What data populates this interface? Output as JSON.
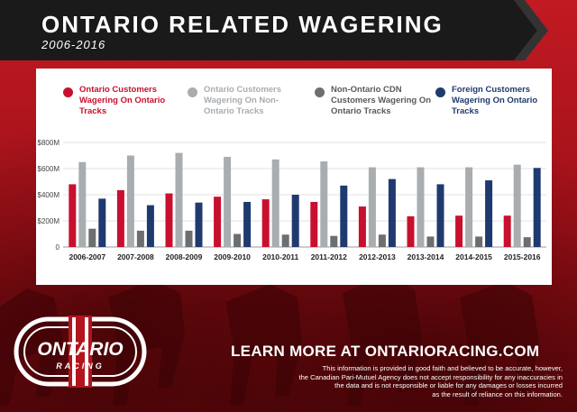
{
  "header": {
    "title": "ONTARIO RELATED WAGERING",
    "subtitle": "2006-2016"
  },
  "legend": [
    {
      "label": "Ontario Customers Wagering On Ontario Tracks",
      "color": "#c8102e"
    },
    {
      "label": "Ontario Customers Wagering On Non-Ontario Tracks",
      "color": "#a9adb0"
    },
    {
      "label": "Non-Ontario CDN Customers Wagering On Ontario Tracks",
      "color": "#6d6e70"
    },
    {
      "label": "Foreign Customers Wagering On Ontario Tracks",
      "color": "#1f3a6e"
    }
  ],
  "chart_data": {
    "type": "bar",
    "title": "",
    "xlabel": "",
    "ylabel": "",
    "ylim": [
      0,
      800
    ],
    "y_ticks": [
      "0",
      "$200M",
      "$400M",
      "$600M",
      "$800M"
    ],
    "y_tick_values": [
      0,
      200,
      400,
      600,
      800
    ],
    "grid": true,
    "categories": [
      "2006-2007",
      "2007-2008",
      "2008-2009",
      "2009-2010",
      "2010-2011",
      "2011-2012",
      "2012-2013",
      "2013-2014",
      "2014-2015",
      "2015-2016"
    ],
    "series": [
      {
        "name": "Ontario Customers Wagering On Ontario Tracks",
        "color": "#c8102e",
        "values": [
          480,
          435,
          410,
          385,
          365,
          345,
          310,
          235,
          240,
          240
        ]
      },
      {
        "name": "Ontario Customers Wagering On Non-Ontario Tracks",
        "color": "#a9adb0",
        "values": [
          650,
          700,
          720,
          690,
          670,
          655,
          610,
          610,
          610,
          630
        ]
      },
      {
        "name": "Non-Ontario CDN Customers Wagering On Ontario Tracks",
        "color": "#6d6e70",
        "values": [
          140,
          125,
          125,
          100,
          95,
          85,
          95,
          80,
          80,
          75
        ]
      },
      {
        "name": "Foreign Customers Wagering On Ontario Tracks",
        "color": "#1f3a6e",
        "values": [
          370,
          320,
          340,
          345,
          400,
          470,
          520,
          480,
          510,
          605
        ]
      }
    ]
  },
  "logo": {
    "word": "ONTARIO",
    "subword": "RACING"
  },
  "footer": {
    "cta": "LEARN MORE AT ONTARIORACING.COM",
    "disclaimer_lines": [
      "This information is provided in good faith and believed to be accurate, however,",
      "the Canadian Pari-Mutuel Agency does not accept responsibility for any inaccuracies in",
      "the data and is not responsible or liable for any damages or losses incurred",
      "as the result of reliance on this information."
    ]
  },
  "colors": {
    "brand_red": "#b3141d",
    "banner_black": "#1a1a1a"
  }
}
